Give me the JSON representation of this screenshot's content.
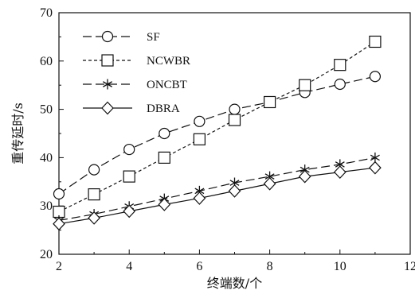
{
  "chart_data": {
    "type": "line",
    "title": "",
    "xlabel": "终端数/个",
    "ylabel": "重传延时/s",
    "xlim": [
      2,
      12
    ],
    "ylim": [
      20,
      70
    ],
    "xticks": [
      2,
      4,
      6,
      8,
      10,
      12
    ],
    "yticks": [
      20,
      30,
      40,
      50,
      60,
      70
    ],
    "x": [
      2,
      3,
      4,
      5,
      6,
      7,
      8,
      9,
      10,
      11
    ],
    "grid": false,
    "legend_position": "top-left",
    "series": [
      {
        "name": "SF",
        "marker": "circle",
        "line_style": "long-dash",
        "values": [
          32.5,
          37.5,
          41.7,
          45.0,
          47.5,
          50.0,
          51.5,
          53.5,
          55.2,
          56.8
        ]
      },
      {
        "name": "NCWBR",
        "marker": "square",
        "line_style": "short-dash",
        "values": [
          28.8,
          32.4,
          36.1,
          40.0,
          43.8,
          47.8,
          51.5,
          55.0,
          59.2,
          64.0
        ]
      },
      {
        "name": "ONCBT",
        "marker": "asterisk",
        "line_style": "long-dash",
        "values": [
          27.0,
          28.3,
          29.9,
          31.5,
          33.1,
          34.8,
          36.1,
          37.5,
          38.6,
          40.0
        ]
      },
      {
        "name": "DBRA",
        "marker": "diamond",
        "line_style": "solid",
        "values": [
          26.3,
          27.5,
          28.9,
          30.3,
          31.6,
          33.1,
          34.6,
          36.1,
          37.0,
          37.9
        ]
      }
    ],
    "colors": {
      "line": "#111111",
      "axis": "#111111",
      "background": "#ffffff"
    }
  }
}
